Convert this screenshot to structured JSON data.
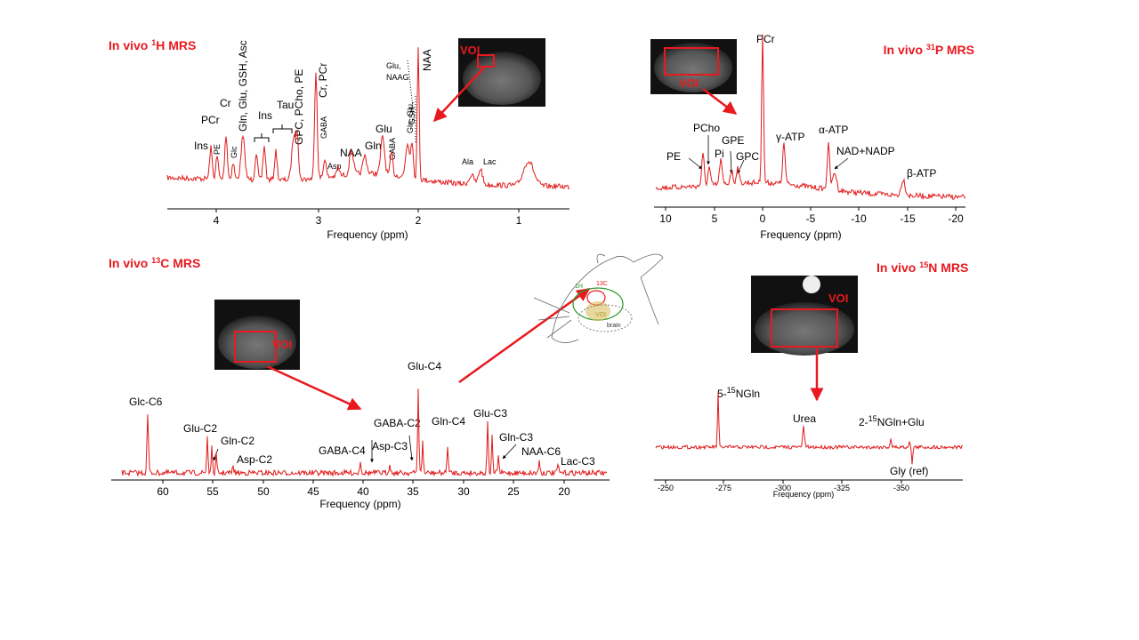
{
  "panels": [
    {
      "title": {
        "pre": "In vivo ",
        "sup": "1",
        "post": "H MRS"
      },
      "axis_label": "Frequency (ppm)",
      "ticks": [
        4,
        3,
        2,
        1
      ],
      "voi": "VOI",
      "peaks": [
        "Ins",
        "PE",
        "PCr",
        "Cr",
        "Glc",
        "Gln, Glu, GSH, Asc",
        "Ins",
        "Tau",
        "GPC, PCho, PE",
        "Cr, PCr",
        "GABA",
        "Asp",
        "NAA",
        "Gln",
        "Glu",
        "GABA",
        "Gln, Glu,",
        "GSH",
        "Glu,",
        "NAAG",
        "NAA",
        "Ala",
        "Lac"
      ]
    },
    {
      "title": {
        "pre": "In vivo ",
        "sup": "31",
        "post": "P MRS"
      },
      "axis_label": "Frequency (ppm)",
      "ticks": [
        10,
        5,
        0,
        -5,
        -10,
        -15,
        -20
      ],
      "voi": "VOI",
      "peaks": [
        "PCr",
        "PCho",
        "GPE",
        "Pi",
        "GPC",
        "PE",
        "γ-ATP",
        "α-ATP",
        "NAD+NADP",
        "β-ATP"
      ]
    },
    {
      "title": {
        "pre": "In vivo ",
        "sup": "13",
        "post": "C MRS"
      },
      "axis_label": "Frequency (ppm)",
      "ticks": [
        60,
        55,
        50,
        45,
        40,
        35,
        30,
        25,
        20
      ],
      "voi": "VOI",
      "peaks": [
        "Glc-C6",
        "Glu-C2",
        "Gln-C2",
        "Asp-C2",
        "GABA-C4",
        "GABA-C2",
        "Asp-C3",
        "Glu-C4",
        "Gln-C4",
        "Glu-C3",
        "Gln-C3",
        "NAA-C6",
        "Lac-C3"
      ]
    },
    {
      "title": {
        "pre": "In vivo ",
        "sup": "15",
        "post": "N MRS"
      },
      "axis_label": "Frequency (ppm)",
      "ticks": [
        -250,
        -275,
        -300,
        -325,
        -350
      ],
      "voi": "VOI",
      "peaks": [
        {
          "pre": "5-",
          "sup": "15",
          "post": "NGln"
        },
        "Urea",
        {
          "pre": "2-",
          "sup": "15",
          "post": "NGln+Glu"
        },
        "Gly (ref)"
      ]
    }
  ],
  "mouse": {
    "labels": [
      "1H",
      "13C",
      "VOI",
      "brain"
    ]
  }
}
